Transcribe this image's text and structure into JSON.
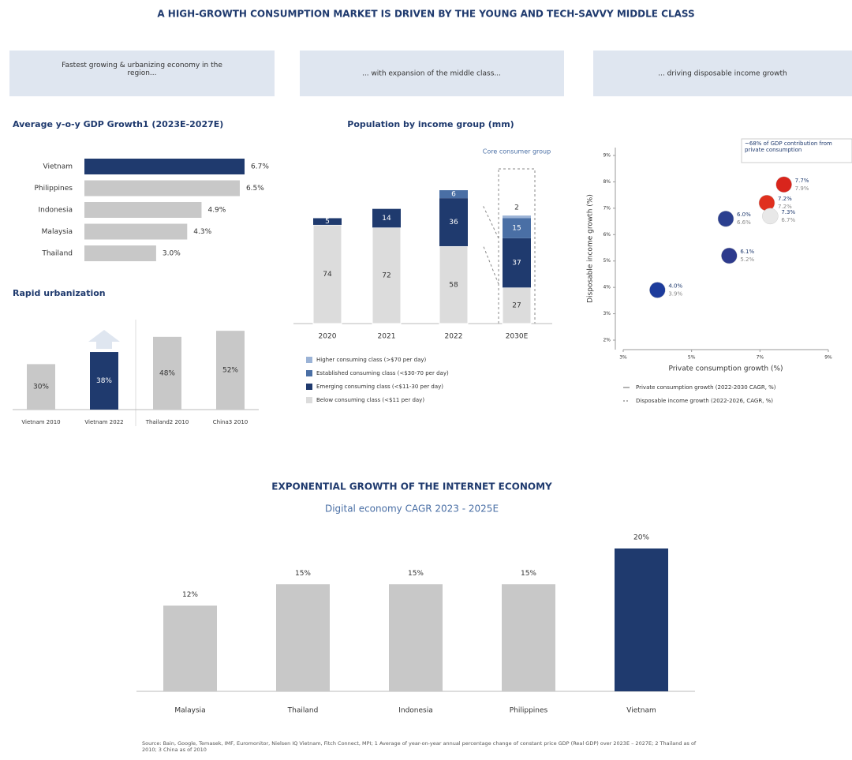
{
  "title": "A HIGH-GROWTH CONSUMPTION MARKET IS DRIVEN BY THE YOUNG AND TECH-SAVVY MIDDLE CLASS",
  "headers": [
    "Fastest growing & urbanizing economy in the region...",
    "... with expansion of the middle class...",
    "... driving disposable income growth"
  ],
  "source": "Source: Bain, Google, Temasek, IMF, Euromonitor, Nielsen IQ Vietnam, Fitch Connect, MPI; 1 Average of year-on-year annual percentage change of constant price GDP (Real GDP) over 2023E – 2027E; 2 Thailand as of 2010; 3 China as of 2010",
  "chart_data": [
    {
      "type": "hbar",
      "title": "Average y-o-y GDP Growth1 (2023E-2027E)",
      "categories": [
        "Vietnam",
        "Philippines",
        "Indonesia",
        "Malaysia",
        "Thailand"
      ],
      "values": [
        6.7,
        6.5,
        4.9,
        4.3,
        3.0
      ],
      "value_labels": [
        "6.7%",
        "6.5%",
        "4.9%",
        "4.3%",
        "3.0%"
      ],
      "colors": [
        "#1f3a6e",
        "#c8c8c8",
        "#c8c8c8",
        "#c8c8c8",
        "#c8c8c8"
      ]
    },
    {
      "type": "bar",
      "title": "Rapid urbanization",
      "categories": [
        "Vietnam 2010",
        "Vietnam 2022",
        "Thailand2 2010",
        "China3 2010"
      ],
      "values": [
        30,
        38,
        48,
        52
      ],
      "value_labels": [
        "30%",
        "38%",
        "48%",
        "52%"
      ],
      "colors": [
        "#c8c8c8",
        "#1f3a6e",
        "#c8c8c8",
        "#c8c8c8"
      ]
    },
    {
      "type": "stacked",
      "title": "Population by income group (mm)",
      "annotation": "Core consumer group",
      "categories": [
        "2020",
        "2021",
        "2022",
        "2030E"
      ],
      "series": [
        {
          "name": "Below consuming class (<$11 per day)",
          "color": "#dcdcdc",
          "values": [
            74,
            72,
            58,
            27
          ]
        },
        {
          "name": "Emerging consuming class (<$11-30 per day)",
          "color": "#1f3a6e",
          "values": [
            5,
            14,
            36,
            37
          ]
        },
        {
          "name": "Established consuming class (<$30-70 per day)",
          "color": "#4a6fa5",
          "values": [
            null,
            null,
            6,
            15
          ]
        },
        {
          "name": "Higher consuming class (>$70 per day)",
          "color": "#9bb3d6",
          "values": [
            null,
            null,
            null,
            2
          ]
        }
      ]
    },
    {
      "type": "scatter",
      "x_label": "Private consumption growth (%)",
      "y_label": "Disposable income growth (%)",
      "annotation": "~68% of GDP contribution from private consumption",
      "x": [
        7.7,
        7.2,
        7.3,
        6.0,
        6.1,
        4.0
      ],
      "values": [
        7.9,
        7.2,
        6.7,
        6.6,
        5.2,
        3.9
      ],
      "x_labels": [
        "7.7%",
        "7.2%",
        "7.3%",
        "6.0%",
        "6.1%",
        "4.0%"
      ],
      "value_labels": [
        "7.9%",
        "7.2%",
        "6.7%",
        "6.6%",
        "5.2%",
        "3.9%"
      ],
      "colors": [
        "#d9251c",
        "#e0301e",
        "#e8e8e8",
        "#2b3f8f",
        "#2d3a8c",
        "#1d3c9c"
      ],
      "xlim": [
        3,
        9
      ],
      "xticks": [
        {
          "value": 3,
          "label": "3%"
        },
        {
          "value": 5,
          "label": "5%"
        },
        {
          "value": 7,
          "label": "7%"
        },
        {
          "value": 9,
          "label": "9%"
        }
      ],
      "ylim": [
        2,
        9
      ],
      "yticks": [
        {
          "value": 2,
          "label": "2%"
        },
        {
          "value": 3,
          "label": "3%"
        },
        {
          "value": 4,
          "label": "4%"
        },
        {
          "value": 5,
          "label": "5%"
        },
        {
          "value": 6,
          "label": "6%"
        },
        {
          "value": 7,
          "label": "7%"
        },
        {
          "value": 8,
          "label": "8%"
        },
        {
          "value": 9,
          "label": "9%"
        }
      ],
      "legend": [
        "Private consumption growth (2022-2030 CAGR, %)",
        "Disposable income growth (2022-2026, CAGR, %)"
      ]
    },
    {
      "type": "bar",
      "title": "EXPONENTIAL GROWTH OF THE INTERNET ECONOMY",
      "subtitle": "Digital economy CAGR 2023 - 2025E",
      "categories": [
        "Malaysia",
        "Thailand",
        "Indonesia",
        "Philippines",
        "Vietnam"
      ],
      "values": [
        12,
        15,
        15,
        15,
        20
      ],
      "value_labels": [
        "12%",
        "15%",
        "15%",
        "15%",
        "20%"
      ],
      "colors": [
        "#c8c8c8",
        "#c8c8c8",
        "#c8c8c8",
        "#c8c8c8",
        "#1f3a6e"
      ]
    }
  ]
}
